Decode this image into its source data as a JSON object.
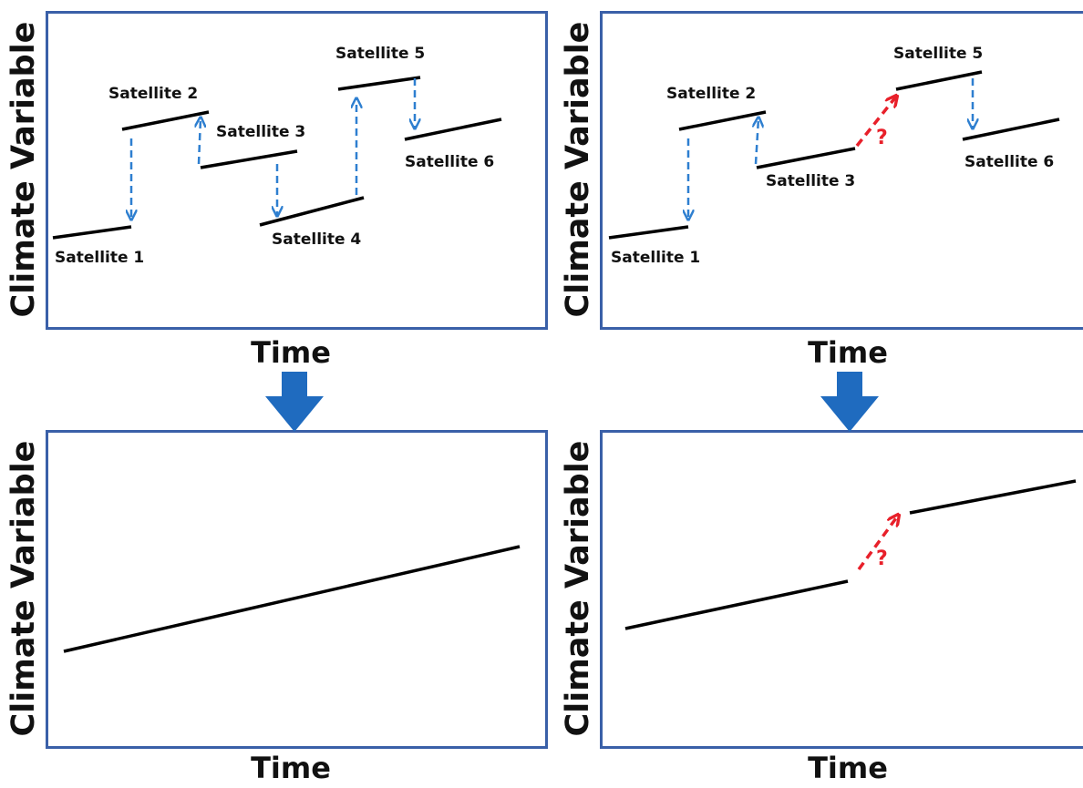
{
  "panels": {
    "top_left": {
      "ylabel": "Climate Variable",
      "xlabel": "Time",
      "satellites": [
        "Satellite 1",
        "Satellite 2",
        "Satellite 3",
        "Satellite 4",
        "Satellite 5",
        "Satellite 6"
      ]
    },
    "top_right": {
      "ylabel": "Climate Variable",
      "xlabel": "Time",
      "satellites": [
        "Satellite 1",
        "Satellite 2",
        "Satellite 3",
        "Satellite 5",
        "Satellite 6"
      ],
      "gap_marker": "?"
    },
    "bottom_left": {
      "ylabel": "Climate Variable",
      "xlabel": "Time"
    },
    "bottom_right": {
      "ylabel": "Climate Variable",
      "xlabel": "Time",
      "gap_marker": "?"
    }
  },
  "colors": {
    "frame": "#3a60a8",
    "adjust_arrow": "#2e7fd0",
    "gap_arrow": "#e8202a",
    "big_arrow": "#1f6bbf",
    "line": "#000000"
  }
}
